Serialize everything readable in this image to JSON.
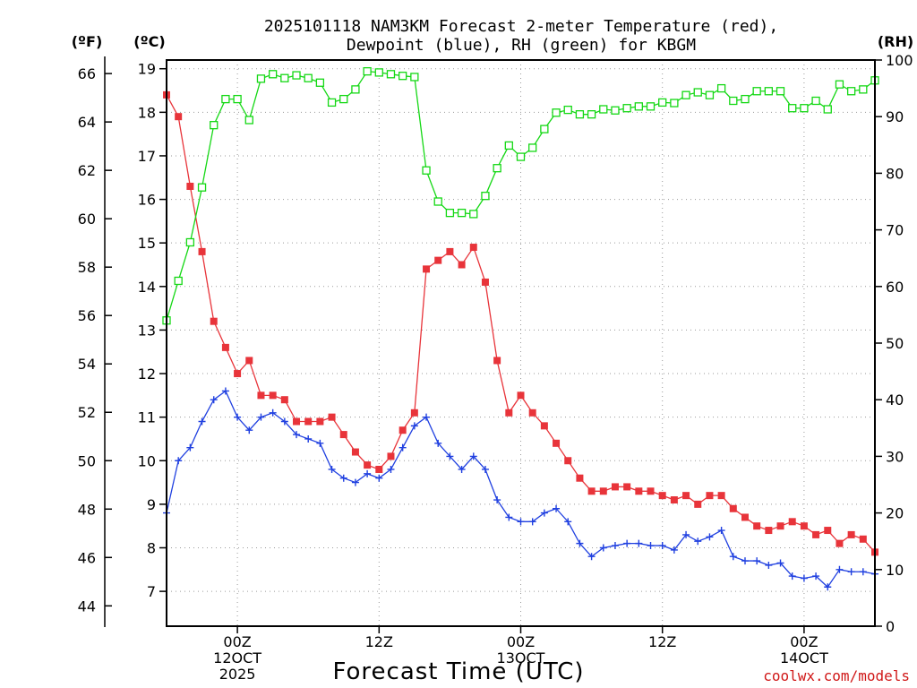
{
  "chart_data": {
    "type": "line",
    "title_lines": [
      "2025101118 NAM3KM Forecast 2-meter Temperature (red),",
      "Dewpoint (blue), RH (green) for KBGM"
    ],
    "xlabel": "Forecast Time (UTC)",
    "credit": "coolwx.com/models",
    "units": {
      "fahrenheit": "(ºF)",
      "celsius": "(ºC)",
      "rh": "(RH)"
    },
    "colors": {
      "temperature": "#e8343a",
      "dewpoint": "#2040e0",
      "rh": "#14d814",
      "credit": "#d01818"
    },
    "x_range": [
      -6,
      54
    ],
    "x_ticks": [
      {
        "hour": 0,
        "lines": [
          "00Z",
          "12OCT",
          "2025"
        ]
      },
      {
        "hour": 12,
        "lines": [
          "12Z"
        ]
      },
      {
        "hour": 24,
        "lines": [
          "00Z",
          "13OCT"
        ]
      },
      {
        "hour": 36,
        "lines": [
          "12Z"
        ]
      },
      {
        "hour": 48,
        "lines": [
          "00Z",
          "14OCT"
        ]
      }
    ],
    "celsius_axis": {
      "range": [
        6.2,
        19.2
      ],
      "ticks": [
        "7",
        "8",
        "9",
        "10",
        "11",
        "12",
        "13",
        "14",
        "15",
        "16",
        "17",
        "18",
        "19"
      ]
    },
    "fahrenheit_axis": {
      "ticks": [
        "44",
        "46",
        "48",
        "50",
        "52",
        "54",
        "56",
        "58",
        "60",
        "62",
        "64",
        "66"
      ]
    },
    "rh_axis": {
      "range": [
        0,
        100
      ],
      "ticks": [
        "0",
        "10",
        "20",
        "30",
        "40",
        "50",
        "60",
        "70",
        "80",
        "90",
        "100"
      ]
    },
    "series": [
      {
        "name": "Temperature",
        "axis": "celsius",
        "marker": "filled-square",
        "x": [
          -6,
          -5,
          -4,
          -3,
          -2,
          -1,
          0,
          1,
          2,
          3,
          4,
          5,
          6,
          7,
          8,
          9,
          10,
          11,
          12,
          13,
          14,
          15,
          16,
          17,
          18,
          19,
          20,
          21,
          22,
          23,
          24,
          25,
          26,
          27,
          28,
          29,
          30,
          31,
          32,
          33,
          34,
          35,
          36,
          37,
          38,
          39,
          40,
          41,
          42,
          43,
          44,
          45,
          46,
          47,
          48,
          49,
          50,
          51,
          52,
          53,
          54
        ],
        "values": [
          18.4,
          17.9,
          16.3,
          14.8,
          13.2,
          12.6,
          12.0,
          12.3,
          11.5,
          11.5,
          11.4,
          10.9,
          10.9,
          10.9,
          11.0,
          10.6,
          10.2,
          9.9,
          9.8,
          10.1,
          10.7,
          11.1,
          14.4,
          14.6,
          14.8,
          14.5,
          14.9,
          14.1,
          12.3,
          11.1,
          11.5,
          11.1,
          10.8,
          10.4,
          10.0,
          9.6,
          9.3,
          9.3,
          9.4,
          9.4,
          9.3,
          9.3,
          9.2,
          9.1,
          9.2,
          9.0,
          9.2,
          9.2,
          8.9,
          8.7,
          8.5,
          8.4,
          8.5,
          8.6,
          8.5,
          8.3,
          8.4,
          8.1,
          8.3,
          8.2,
          7.9
        ]
      },
      {
        "name": "Dewpoint",
        "axis": "celsius",
        "marker": "plus",
        "x": [
          -6,
          -5,
          -4,
          -3,
          -2,
          -1,
          0,
          1,
          2,
          3,
          4,
          5,
          6,
          7,
          8,
          9,
          10,
          11,
          12,
          13,
          14,
          15,
          16,
          17,
          18,
          19,
          20,
          21,
          22,
          23,
          24,
          25,
          26,
          27,
          28,
          29,
          30,
          31,
          32,
          33,
          34,
          35,
          36,
          37,
          38,
          39,
          40,
          41,
          42,
          43,
          44,
          45,
          46,
          47,
          48,
          49,
          50,
          51,
          52,
          53,
          54
        ],
        "values": [
          8.8,
          10.0,
          10.3,
          10.9,
          11.4,
          11.6,
          11.0,
          10.7,
          11.0,
          11.1,
          10.9,
          10.6,
          10.5,
          10.4,
          9.8,
          9.6,
          9.5,
          9.7,
          9.6,
          9.8,
          10.3,
          10.8,
          11.0,
          10.4,
          10.1,
          9.8,
          10.1,
          9.8,
          9.1,
          8.7,
          8.6,
          8.6,
          8.8,
          8.9,
          8.6,
          8.1,
          7.8,
          8.0,
          8.05,
          8.1,
          8.1,
          8.05,
          8.05,
          7.95,
          8.3,
          8.15,
          8.25,
          8.4,
          7.8,
          7.7,
          7.7,
          7.6,
          7.65,
          7.35,
          7.3,
          7.35,
          7.1,
          7.5,
          7.45,
          7.45,
          7.4
        ]
      },
      {
        "name": "RH",
        "axis": "rh",
        "marker": "open-square",
        "x": [
          -6,
          -5,
          -4,
          -3,
          -2,
          -1,
          0,
          1,
          2,
          3,
          4,
          5,
          6,
          7,
          8,
          9,
          10,
          11,
          12,
          13,
          14,
          15,
          16,
          17,
          18,
          19,
          20,
          21,
          22,
          23,
          24,
          25,
          26,
          27,
          28,
          29,
          30,
          31,
          32,
          33,
          34,
          35,
          36,
          37,
          38,
          39,
          40,
          41,
          42,
          43,
          44,
          45,
          46,
          47,
          48,
          49,
          50,
          51,
          52,
          53,
          54
        ],
        "values": [
          54,
          61,
          67.8,
          77.5,
          88.5,
          93.1,
          93.1,
          89.4,
          96.7,
          97.5,
          96.8,
          97.3,
          96.8,
          96,
          92.5,
          93.1,
          94.8,
          98,
          97.8,
          97.5,
          97.2,
          97,
          80.5,
          75,
          73,
          73,
          72.8,
          76,
          80.9,
          84.9,
          82.9,
          84.5,
          87.8,
          90.7,
          91.2,
          90.4,
          90.4,
          91.3,
          91.1,
          91.5,
          91.8,
          91.8,
          92.5,
          92.4,
          93.8,
          94.3,
          93.8,
          95,
          92.8,
          93.1,
          94.5,
          94.5,
          94.5,
          91.5,
          91.5,
          92.8,
          91.3,
          95.7,
          94.5,
          94.8,
          96.4
        ]
      }
    ]
  }
}
